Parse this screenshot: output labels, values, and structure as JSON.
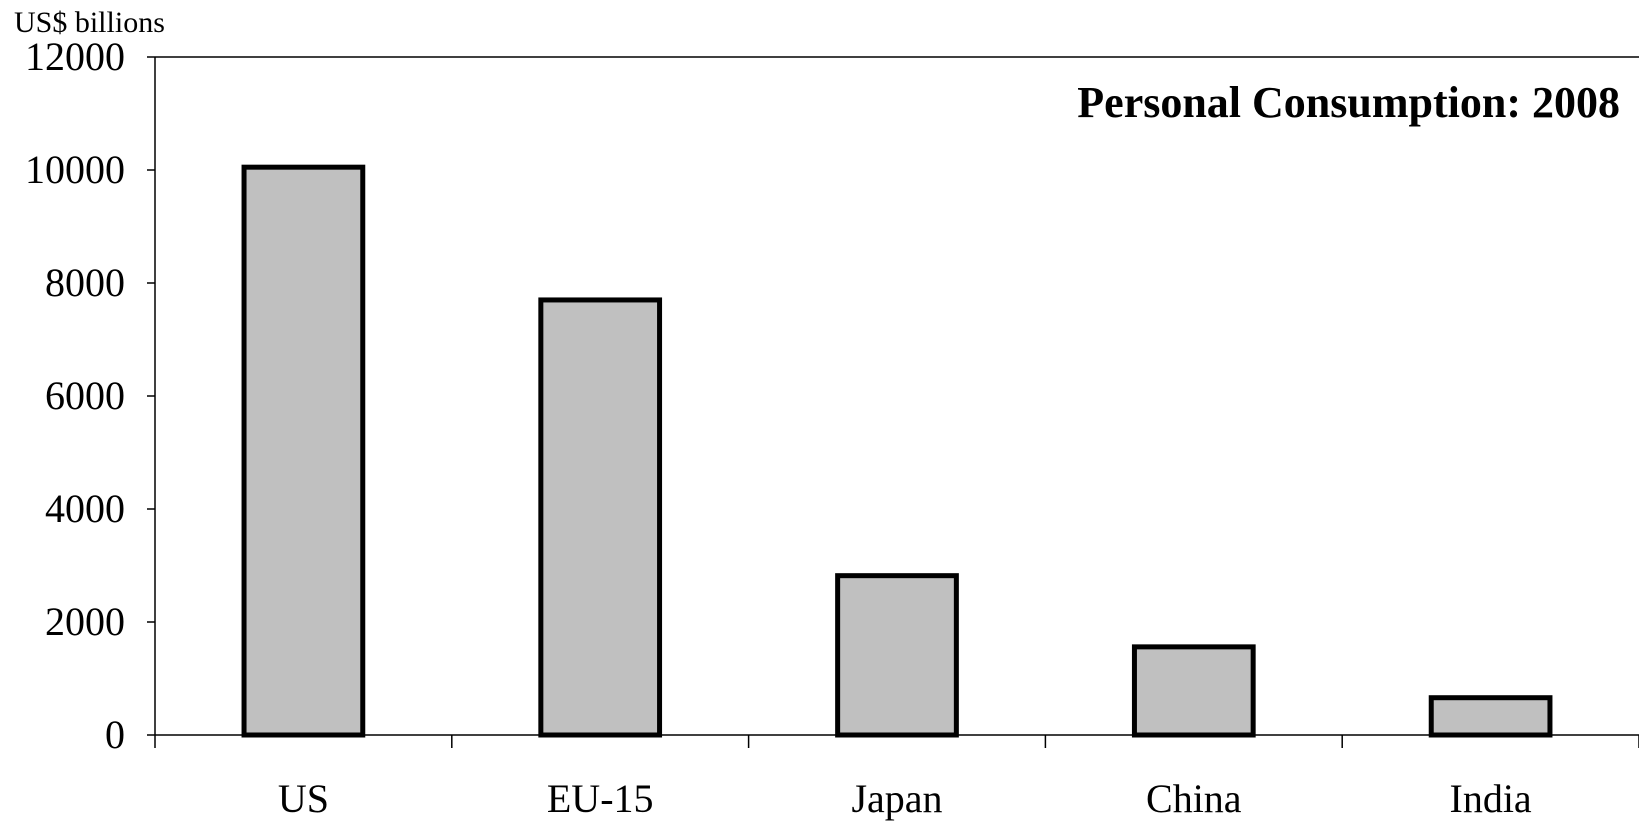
{
  "chart_data": {
    "type": "bar",
    "title": "Personal Consumption: 2008",
    "unit_label": "US$ billions",
    "xlabel": "",
    "ylabel": "",
    "categories": [
      "US",
      "EU-15",
      "Japan",
      "China",
      "India"
    ],
    "values": [
      10050,
      7700,
      2820,
      1560,
      660
    ],
    "ylim": [
      0,
      12000
    ],
    "yticks": [
      "0",
      "2000",
      "4000",
      "6000",
      "8000",
      "10000",
      "12000"
    ],
    "grid": false,
    "legend": "none",
    "bar_color": "#c0c0c0",
    "edge_color": "#000000"
  }
}
